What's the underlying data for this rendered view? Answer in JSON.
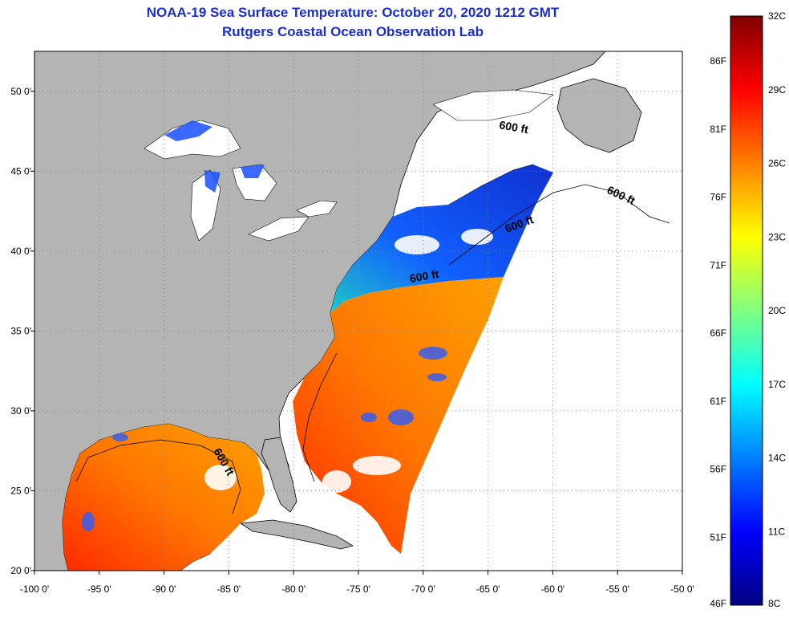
{
  "title": {
    "line1": "NOAA-19 Sea Surface Temperature:  October 20, 2020 1212 GMT",
    "line2": "Rutgers Coastal Ocean Observation Lab"
  },
  "map": {
    "region": "US East Coast, Gulf of Mexico and Canadian Maritimes",
    "lon_range": [
      -100,
      -50
    ],
    "lat_range": [
      20,
      52.5
    ],
    "lon_ticks": [
      {
        "value": -100,
        "label": "-100 0'"
      },
      {
        "value": -95,
        "label": "-95 0'"
      },
      {
        "value": -90,
        "label": "-90 0'"
      },
      {
        "value": -85,
        "label": "-85 0'"
      },
      {
        "value": -80,
        "label": "-80 0'"
      },
      {
        "value": -75,
        "label": "-75 0'"
      },
      {
        "value": -70,
        "label": "-70 0'"
      },
      {
        "value": -65,
        "label": "-65 0'"
      },
      {
        "value": -60,
        "label": "-60 0'"
      },
      {
        "value": -55,
        "label": "-55 0'"
      },
      {
        "value": -50,
        "label": "-50 0'"
      }
    ],
    "lat_ticks": [
      {
        "value": 20,
        "label": "20 0'"
      },
      {
        "value": 25,
        "label": "25 0'"
      },
      {
        "value": 30,
        "label": "30 0'"
      },
      {
        "value": 35,
        "label": "35 0'"
      },
      {
        "value": 40,
        "label": "40 0'"
      },
      {
        "value": 45,
        "label": "45 0'"
      },
      {
        "value": 50,
        "label": "50 0'"
      }
    ],
    "contour_labels": [
      "600 ft",
      "600 ft",
      "600 ft",
      "600 ft",
      "600 ft"
    ],
    "colors": {
      "land": "#b4b4b4",
      "no_data": "#ffffff",
      "grid": "#888888"
    }
  },
  "colorbar": {
    "celsius_labels": [
      "32C",
      "29C",
      "26C",
      "23C",
      "20C",
      "17C",
      "14C",
      "11C",
      "8C"
    ],
    "fahrenheit_labels": [
      "86F",
      "81F",
      "76F",
      "71F",
      "66F",
      "61F",
      "56F",
      "51F",
      "46F"
    ],
    "min_c": 8,
    "max_c": 32,
    "gradient": [
      "#00007f",
      "#0000ff",
      "#0080ff",
      "#00ffff",
      "#80ff80",
      "#ffff00",
      "#ff8000",
      "#ff0000",
      "#7f0000"
    ]
  }
}
